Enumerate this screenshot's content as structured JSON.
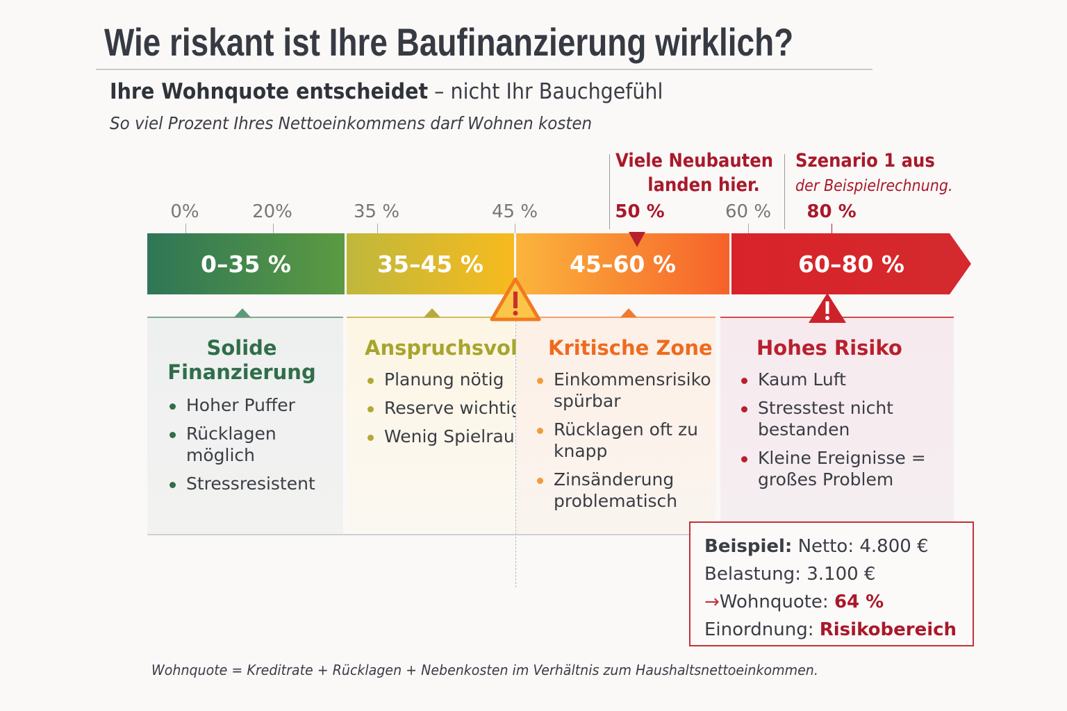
{
  "title": "Wie riskant ist Ihre Baufinanzierung wirklich?",
  "subtitle": {
    "bold": "Ihre Wohnquote entscheidet",
    "rest": "– nicht Ihr Bauchgefühl"
  },
  "subtitle2": "So viel Prozent Ihres Nettoeinkommens darf Wohnen kosten",
  "annotations": {
    "neubauten": [
      "Viele Neubauten",
      "landen hier."
    ],
    "szenario": {
      "line1": "Szenario 1 aus",
      "line2": "der Beispielrechnung."
    }
  },
  "ticks": [
    "0%",
    "20%",
    "35 %",
    "45 %",
    "50 %",
    "60 %",
    "80 %"
  ],
  "segments": [
    {
      "label": "0–35 %",
      "color_from": "#2f7656",
      "color_to": "#5c9a42"
    },
    {
      "label": "35–45 %",
      "color_from": "#bfb83c",
      "color_to": "#f7ba1e"
    },
    {
      "label": "45–60 %",
      "color_from": "#fbb43c",
      "color_to": "#f6622a"
    },
    {
      "label": "60–80 %",
      "color_from": "#d8232a",
      "color_to": "#d42a2e"
    }
  ],
  "panels": [
    {
      "title": [
        "Solide",
        "Finanzierung"
      ],
      "color": "#2f6e4a",
      "items": [
        "Hoher Puffer",
        "Rücklagen möglich",
        "Stressresistent"
      ]
    },
    {
      "title": [
        "Anspruchsvoll"
      ],
      "color": "#a7a52c",
      "items": [
        "Planung nötig",
        "Reserve wichtig",
        "Wenig Spielraum"
      ]
    },
    {
      "title": [
        "Kritische Zone"
      ],
      "color": "#ef6a1e",
      "items": [
        "Einkommensrisiko spürbar",
        "Rücklagen oft zu knapp",
        "Zinsänderung problematisch"
      ]
    },
    {
      "title": [
        "Hohes Risiko"
      ],
      "color": "#b8202e",
      "items": [
        "Kaum Luft",
        "Stresstest nicht bestanden",
        "Kleine Ereignisse = großes Problem"
      ]
    }
  ],
  "example": {
    "label": "Beispiel:",
    "netto": "Netto: 4.800 €",
    "belastung": "Belastung: 3.100 €",
    "arrow": "→",
    "wohnquote_label": "Wohnquote:",
    "wohnquote_value": "64 %",
    "einordnung_label": "Einordnung:",
    "einordnung_value": "Risikobereich"
  },
  "footnote": "Wohnquote = Kreditrate + Rücklagen + Nebenkosten im Verhältnis zum Haushaltsnettoeinkommen.",
  "colors": {
    "accent_red": "#a8192a",
    "text": "#3a3d44"
  }
}
